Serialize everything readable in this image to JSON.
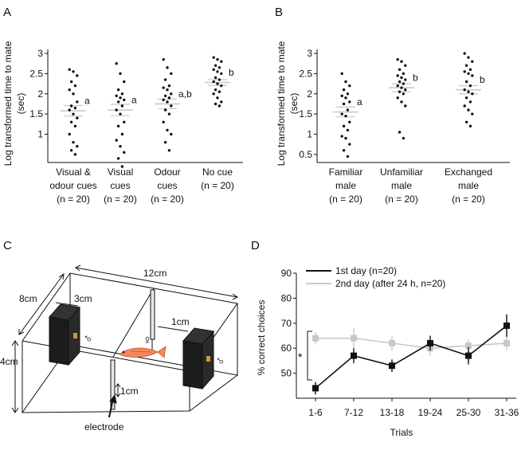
{
  "figure": {
    "panels": [
      {
        "letter": "A"
      },
      {
        "letter": "B"
      },
      {
        "letter": "C"
      },
      {
        "letter": "D"
      }
    ]
  },
  "chart_data": [
    {
      "panel": "A",
      "type": "scatter",
      "ylabel_lines": [
        "Log transformed time to mate",
        "(sec)"
      ],
      "ylim": [
        0.3,
        3.1
      ],
      "yticks": [
        1,
        1.5,
        2,
        2.5,
        3
      ],
      "categories": [
        {
          "lines": [
            "Visual &",
            "odour cues",
            "(n = 20)"
          ],
          "letter": "a",
          "mean": 1.58,
          "sem": 0.13,
          "values": [
            2.6,
            2.55,
            2.45,
            2.3,
            2.2,
            2.1,
            2.0,
            1.8,
            1.7,
            1.65,
            1.6,
            1.5,
            1.4,
            1.3,
            1.2,
            1.0,
            0.8,
            0.7,
            0.6,
            0.5
          ]
        },
        {
          "lines": [
            "Visual",
            "cues",
            "(n = 20)"
          ],
          "letter": "a",
          "mean": 1.6,
          "sem": 0.14,
          "values": [
            2.75,
            2.5,
            2.3,
            2.1,
            2.0,
            1.95,
            1.9,
            1.85,
            1.8,
            1.7,
            1.6,
            1.5,
            1.3,
            1.2,
            1.0,
            0.85,
            0.7,
            0.55,
            0.4,
            0.2
          ]
        },
        {
          "lines": [
            "Odour",
            "cues",
            "(n = 20)"
          ],
          "letter": "a,b",
          "mean": 1.75,
          "sem": 0.12,
          "values": [
            2.85,
            2.65,
            2.5,
            2.35,
            2.2,
            2.15,
            2.1,
            2.0,
            1.95,
            1.9,
            1.85,
            1.8,
            1.7,
            1.6,
            1.5,
            1.3,
            1.1,
            1.0,
            0.8,
            0.6
          ]
        },
        {
          "lines": [
            "No cue",
            "(n = 20)"
          ],
          "letter": "b",
          "mean": 2.28,
          "sem": 0.07,
          "values": [
            2.9,
            2.85,
            2.8,
            2.7,
            2.65,
            2.6,
            2.55,
            2.5,
            2.4,
            2.35,
            2.3,
            2.25,
            2.2,
            2.1,
            2.05,
            2.0,
            1.9,
            1.8,
            1.75,
            1.7
          ]
        }
      ]
    },
    {
      "panel": "B",
      "type": "scatter",
      "ylabel_lines": [
        "Log transformed time to mate",
        "(sec)"
      ],
      "ylim": [
        0.3,
        3.1
      ],
      "yticks": [
        0.5,
        1,
        1.5,
        2,
        2.5,
        3
      ],
      "categories": [
        {
          "lines": [
            "Familiar",
            "male",
            "(n = 20)"
          ],
          "letter": "a",
          "mean": 1.55,
          "sem": 0.12,
          "values": [
            2.5,
            2.3,
            2.2,
            2.1,
            2.0,
            1.95,
            1.9,
            1.8,
            1.75,
            1.6,
            1.5,
            1.45,
            1.3,
            1.2,
            1.1,
            0.95,
            0.9,
            0.75,
            0.6,
            0.45
          ]
        },
        {
          "lines": [
            "Unfamiliar",
            "male",
            "(n = 20)"
          ],
          "letter": "b",
          "mean": 2.15,
          "sem": 0.1,
          "values": [
            2.85,
            2.8,
            2.7,
            2.6,
            2.5,
            2.45,
            2.4,
            2.35,
            2.3,
            2.25,
            2.2,
            2.15,
            2.1,
            2.05,
            2.0,
            1.9,
            1.8,
            1.7,
            1.05,
            0.9
          ]
        },
        {
          "lines": [
            "Exchanged",
            "male",
            "(n = 20)"
          ],
          "letter": "b",
          "mean": 2.1,
          "sem": 0.1,
          "values": [
            3.0,
            2.9,
            2.8,
            2.7,
            2.6,
            2.55,
            2.5,
            2.45,
            2.3,
            2.2,
            2.1,
            2.05,
            2.0,
            1.9,
            1.8,
            1.7,
            1.6,
            1.5,
            1.3,
            1.2
          ]
        }
      ]
    },
    {
      "panel": "D",
      "type": "line",
      "ylabel": "% correct choices",
      "xlabel": "Trials",
      "ylim": [
        40,
        90
      ],
      "yticks": [
        50,
        60,
        70,
        80,
        90
      ],
      "categories": [
        "1-6",
        "7-12",
        "13-18",
        "19-24",
        "25-30",
        "31-36"
      ],
      "series": [
        {
          "name": "1st day (n=20)",
          "color": "#111111",
          "values": [
            44,
            57,
            53,
            62,
            57,
            69
          ],
          "errors": [
            2.5,
            3.0,
            2.5,
            3.0,
            3.5,
            4.5
          ]
        },
        {
          "name": "2nd day (after 24 h, n=20)",
          "color": "#c8c8c8",
          "values": [
            64,
            64,
            62,
            60,
            61,
            62
          ],
          "errors": [
            2.5,
            4.0,
            3.0,
            3.0,
            2.5,
            3.0
          ]
        }
      ],
      "annotation": "*"
    }
  ],
  "diagram": {
    "panel": "C",
    "dimensions": {
      "length": "12cm",
      "depth": "8cm",
      "height": "4cm",
      "box_width": "3cm",
      "gap_upper": "1cm",
      "gap_lower": "1cm"
    },
    "electrode_label": "electrode",
    "male_symbol": "♂",
    "female_symbol": "♀"
  }
}
